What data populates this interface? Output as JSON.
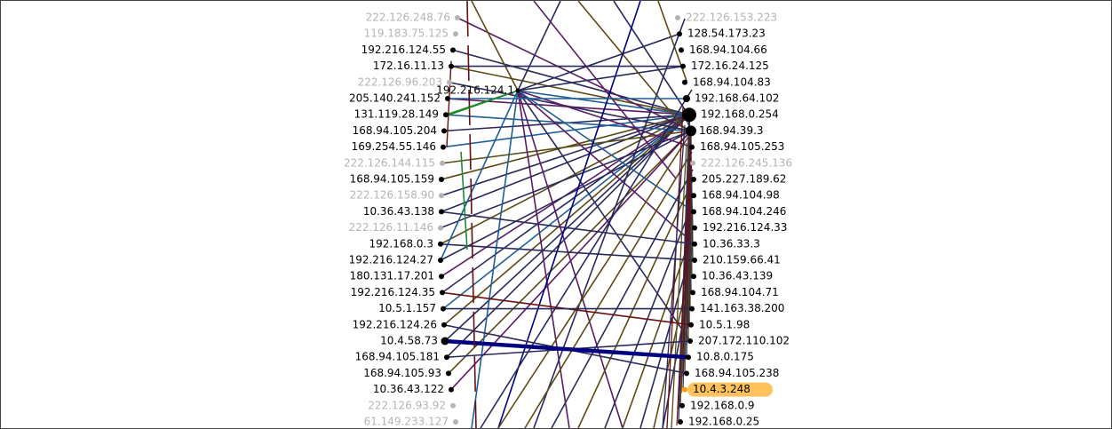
{
  "colors": {
    "background": "#ffffff",
    "label_default": "#000000",
    "label_muted": "#b4b4b4",
    "highlight_fill": "#ffc25c",
    "edge_dark": "#2a2a5a",
    "edge_olive": "#5c4a14",
    "edge_purple": "#5a1a62",
    "edge_blue": "#1f5f94",
    "edge_navy": "#000080",
    "edge_maroon": "#6a0f0f",
    "edge_green": "#1e8a2c"
  },
  "hub": {
    "label": "192.216.124.1"
  },
  "left_hosts": [
    {
      "label": "222.126.248.76",
      "muted": true
    },
    {
      "label": "119.183.75.125",
      "muted": true
    },
    {
      "label": "192.216.124.55",
      "muted": false
    },
    {
      "label": "172.16.11.13",
      "muted": false
    },
    {
      "label": "222.126.96.203",
      "muted": true
    },
    {
      "label": "205.140.241.152",
      "muted": false
    },
    {
      "label": "131.119.28.149",
      "muted": false
    },
    {
      "label": "168.94.105.204",
      "muted": false
    },
    {
      "label": "169.254.55.146",
      "muted": false
    },
    {
      "label": "222.126.144.115",
      "muted": true
    },
    {
      "label": "168.94.105.159",
      "muted": false
    },
    {
      "label": "222.126.158.90",
      "muted": true
    },
    {
      "label": "10.36.43.138",
      "muted": false
    },
    {
      "label": "222.126.11.146",
      "muted": true
    },
    {
      "label": "192.168.0.3",
      "muted": false
    },
    {
      "label": "192.216.124.27",
      "muted": false
    },
    {
      "label": "180.131.17.201",
      "muted": false
    },
    {
      "label": "192.216.124.35",
      "muted": false
    },
    {
      "label": "10.5.1.157",
      "muted": false
    },
    {
      "label": "192.216.124.26",
      "muted": false
    },
    {
      "label": "10.4.58.73",
      "muted": false
    },
    {
      "label": "168.94.105.181",
      "muted": false
    },
    {
      "label": "168.94.105.93",
      "muted": false
    },
    {
      "label": "10.36.43.122",
      "muted": false
    },
    {
      "label": "222.126.93.92",
      "muted": true
    },
    {
      "label": "61.149.233.127",
      "muted": true
    }
  ],
  "right_hosts": [
    {
      "label": "222.126.153.223",
      "muted": true
    },
    {
      "label": "128.54.173.23",
      "muted": false
    },
    {
      "label": "168.94.104.66",
      "muted": false
    },
    {
      "label": "172.16.24.125",
      "muted": false
    },
    {
      "label": "168.94.104.83",
      "muted": false
    },
    {
      "label": "192.168.64.102",
      "muted": false
    },
    {
      "label": "192.168.0.254",
      "muted": false
    },
    {
      "label": "168.94.39.3",
      "muted": false
    },
    {
      "label": "168.94.105.253",
      "muted": false
    },
    {
      "label": "222.126.245.136",
      "muted": true
    },
    {
      "label": "205.227.189.62",
      "muted": false
    },
    {
      "label": "168.94.104.98",
      "muted": false
    },
    {
      "label": "168.94.104.246",
      "muted": false
    },
    {
      "label": "192.216.124.33",
      "muted": false
    },
    {
      "label": "10.36.33.3",
      "muted": false
    },
    {
      "label": "210.159.66.41",
      "muted": false
    },
    {
      "label": "10.36.43.139",
      "muted": false
    },
    {
      "label": "168.94.104.71",
      "muted": false
    },
    {
      "label": "141.163.38.200",
      "muted": false
    },
    {
      "label": "10.5.1.98",
      "muted": false
    },
    {
      "label": "207.172.110.102",
      "muted": false
    },
    {
      "label": "10.8.0.175",
      "muted": false
    },
    {
      "label": "168.94.105.238",
      "muted": false
    },
    {
      "label": "10.4.3.248",
      "muted": false,
      "highlighted": true
    },
    {
      "label": "192.168.0.9",
      "muted": false
    },
    {
      "label": "192.168.0.25",
      "muted": false
    }
  ]
}
